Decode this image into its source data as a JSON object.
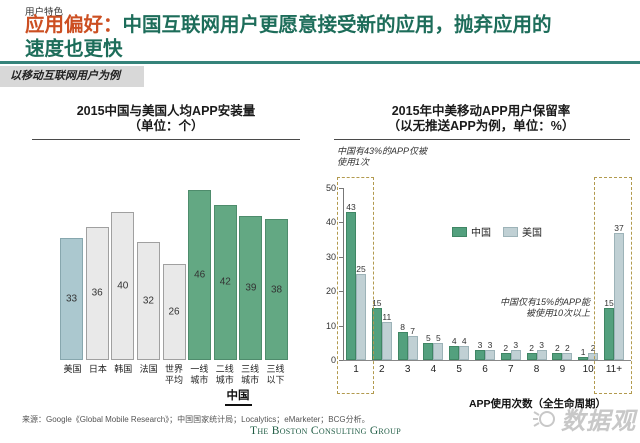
{
  "header": {
    "eyebrow": "用户特色",
    "title_highlight": "应用偏好：",
    "title_line1_rest": "中国互联网用户更愿意接受新的应用，抛弃应用的",
    "title_line2": "速度也更快",
    "band_label": "以移动互联网用户为例"
  },
  "left_chart": {
    "title": "2015中国与美国人均APP安装量",
    "subtitle": "（单位：个）",
    "china_group_label": "中国"
  },
  "right_chart": {
    "title": "2015年中美移动APP用户保留率",
    "subtitle": "（以无推送APP为例，单位：%）",
    "annotation_top": [
      "中国有43%的APP仅被",
      "使用1次"
    ],
    "annotation_mid": [
      "中国仅有15%的APP能",
      "被使用10次以上"
    ],
    "xaxis_title": "APP使用次数（全生命周期）"
  },
  "footer": {
    "source": "来源：Google《Global Mobile Research》；中国国家统计局；Localytics；eMarketer；BCG分析。",
    "bcg_logo": "The Boston Consulting Group",
    "watermark": "数据观"
  },
  "colors": {
    "title_highlight": "#cc4f22",
    "title_green": "#1d6d5a",
    "header_rule": "#35837a",
    "band_bg": "#d8d8d8",
    "china_green": "#53a07e",
    "usa_gray": "#c0d0d4",
    "left_green": "#63a883",
    "left_gray": "#e9e9e9",
    "left_blue": "#abc8cf",
    "dashed_box": "#b29a4e",
    "bcg_green": "#1f5c44"
  },
  "chart_data": [
    {
      "type": "bar",
      "title": "2015中国与美国人均APP安装量（单位：个）",
      "categories": [
        "美国",
        "日本",
        "韩国",
        "法国",
        "世界平均",
        "一线城市",
        "二线城市",
        "三线城市",
        "三线以下"
      ],
      "categories_lines": [
        [
          "美国"
        ],
        [
          "日本"
        ],
        [
          "韩国"
        ],
        [
          "法国"
        ],
        [
          "世界",
          "平均"
        ],
        [
          "一线",
          "城市"
        ],
        [
          "二线",
          "城市"
        ],
        [
          "三线",
          "城市"
        ],
        [
          "三线",
          "以下"
        ]
      ],
      "values": [
        33,
        36,
        40,
        32,
        26,
        46,
        42,
        39,
        38
      ],
      "bar_colors": [
        "#abc8cf",
        "#e9e9e9",
        "#e9e9e9",
        "#e9e9e9",
        "#e9e9e9",
        "#63a883",
        "#63a883",
        "#63a883",
        "#63a883"
      ],
      "bar_borders": [
        "#87a7ae",
        "#a0a0a0",
        "#a0a0a0",
        "#a0a0a0",
        "#a0a0a0",
        "#4e8c6c",
        "#4e8c6c",
        "#4e8c6c",
        "#4e8c6c"
      ],
      "value_labels": "inside-center",
      "ylim": [
        0,
        46
      ],
      "grid": false,
      "group_bracket": {
        "label": "中国",
        "from": "一线城市",
        "to": "三线以下"
      }
    },
    {
      "type": "bar",
      "title": "2015年中美移动APP用户保留率（以无推送APP为例，单位：%）",
      "categories": [
        "1",
        "2",
        "3",
        "4",
        "5",
        "6",
        "7",
        "8",
        "9",
        "10",
        "11+"
      ],
      "series": [
        {
          "name": "中国",
          "color": "#53a07e",
          "border": "#3f8664",
          "values": [
            43,
            15,
            8,
            5,
            4,
            3,
            2,
            2,
            2,
            1,
            15
          ]
        },
        {
          "name": "美国",
          "color": "#c0d0d4",
          "border": "#9db3b8",
          "values": [
            25,
            11,
            7,
            5,
            4,
            3,
            3,
            3,
            2,
            2,
            37
          ]
        }
      ],
      "ylim": [
        0,
        50
      ],
      "yticks": [
        0,
        10,
        20,
        30,
        40,
        50
      ],
      "xlabel": "APP使用次数（全生命周期）",
      "legend_position": "top-center",
      "grid": false,
      "highlight_boxes": [
        "1",
        "11+"
      ],
      "annotations": [
        "中国有43%的APP仅被使用1次",
        "中国仅有15%的APP能被使用10次以上"
      ]
    }
  ]
}
